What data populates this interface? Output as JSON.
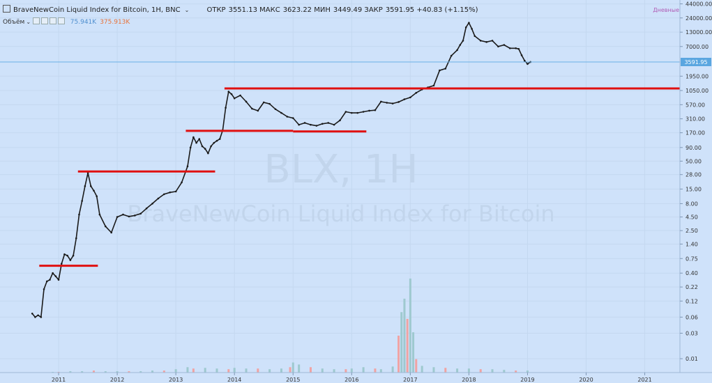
{
  "header": {
    "title": "BraveNewCoin Liquid Index for Bitcoin, 1H, BNC",
    "dropdown": "⌄",
    "open_label": "ОТКР",
    "open": "3551.13",
    "high_label": "МАКС",
    "high": "3623.22",
    "low_label": "МИН",
    "low": "3449.49",
    "close_label": "ЗАКР",
    "close": "3591.95",
    "change": "+40.83 (+1.15%)"
  },
  "volume": {
    "label": "Объём",
    "value1": "75.941K",
    "value2": "375.913K"
  },
  "interval_label": "Дневные",
  "watermark": {
    "line1": "BLX, 1H",
    "line2": "BraveNewCoin Liquid Index for Bitcoin"
  },
  "colors": {
    "background": "#cfe2fa",
    "candle": "#1a1a1a",
    "level_line": "#e01010",
    "volume_up": "#9ec9cf",
    "volume_down": "#f0a3a3",
    "price_line": "#6ab0e6",
    "price_badge": "#5aa6e0"
  },
  "chart_data": {
    "type": "line",
    "y_scale": "log",
    "xlim": [
      2010.0,
      2021.6
    ],
    "ylim": [
      0.0055,
      52000
    ],
    "x_ticks": [
      "2011",
      "2012",
      "2013",
      "2014",
      "2015",
      "2016",
      "2017",
      "2018",
      "2019",
      "2020",
      "2021"
    ],
    "y_ticks": [
      "44000.00",
      "24000.00",
      "13000.00",
      "7000.00",
      "3591.95",
      "1950.00",
      "1050.00",
      "570.00",
      "310.00",
      "170.00",
      "90.00",
      "50.00",
      "28.00",
      "15.00",
      "8.00",
      "4.50",
      "2.50",
      "1.40",
      "0.75",
      "0.40",
      "0.22",
      "0.12",
      "0.06",
      "0.03",
      "0.01"
    ],
    "last_price": 3591.95,
    "series": [
      {
        "x": [
          2010.55,
          2010.6,
          2010.65,
          2010.7,
          2010.75,
          2010.8,
          2010.85,
          2010.9,
          2010.95,
          2011.0,
          2011.05,
          2011.1,
          2011.15,
          2011.2,
          2011.25,
          2011.3,
          2011.35,
          2011.4,
          2011.45,
          2011.5,
          2011.55,
          2011.6,
          2011.65,
          2011.7,
          2011.8,
          2011.9,
          2012.0,
          2012.1,
          2012.2,
          2012.3,
          2012.4,
          2012.5,
          2012.6,
          2012.7,
          2012.8,
          2012.9,
          2013.0,
          2013.1,
          2013.2,
          2013.25,
          2013.3,
          2013.35,
          2013.4,
          2013.45,
          2013.5,
          2013.55,
          2013.6,
          2013.65,
          2013.7,
          2013.75,
          2013.8,
          2013.85,
          2013.9,
          2013.95,
          2014.0,
          2014.1,
          2014.2,
          2014.3,
          2014.4,
          2014.5,
          2014.6,
          2014.7,
          2014.8,
          2014.9,
          2015.0,
          2015.1,
          2015.2,
          2015.3,
          2015.4,
          2015.5,
          2015.6,
          2015.7,
          2015.8,
          2015.9,
          2016.0,
          2016.1,
          2016.2,
          2016.3,
          2016.4,
          2016.5,
          2016.6,
          2016.7,
          2016.8,
          2016.9,
          2017.0,
          2017.1,
          2017.2,
          2017.3,
          2017.4,
          2017.5,
          2017.6,
          2017.7,
          2017.8,
          2017.85,
          2017.9,
          2017.95,
          2018.0,
          2018.05,
          2018.1,
          2018.2,
          2018.3,
          2018.4,
          2018.5,
          2018.6,
          2018.7,
          2018.8,
          2018.85,
          2018.9,
          2018.95,
          2019.0,
          2019.05
        ],
        "y": [
          0.07,
          0.06,
          0.065,
          0.06,
          0.2,
          0.28,
          0.3,
          0.4,
          0.35,
          0.3,
          0.6,
          0.9,
          0.85,
          0.7,
          0.85,
          1.8,
          5.0,
          9.0,
          17.0,
          30.0,
          17.0,
          14.0,
          11.0,
          5.0,
          3.0,
          2.3,
          4.5,
          5.0,
          4.6,
          4.8,
          5.2,
          6.5,
          8.0,
          10.0,
          12.0,
          13.0,
          13.5,
          20.0,
          40.0,
          90.0,
          140.0,
          110.0,
          130.0,
          95.0,
          85.0,
          70.0,
          95.0,
          110.0,
          120.0,
          130.0,
          190.0,
          500.0,
          1000.0,
          900.0,
          750.0,
          850.0,
          650.0,
          480.0,
          440.0,
          630.0,
          590.0,
          470.0,
          400.0,
          340.0,
          320.0,
          240.0,
          260.0,
          240.0,
          230.0,
          250.0,
          260.0,
          240.0,
          290.0,
          420.0,
          400.0,
          400.0,
          420.0,
          440.0,
          450.0,
          650.0,
          620.0,
          600.0,
          640.0,
          720.0,
          780.0,
          950.0,
          1100.0,
          1200.0,
          1300.0,
          2500.0,
          2700.0,
          4700.0,
          6000.0,
          7500.0,
          9000.0,
          16000.0,
          19500.0,
          15000.0,
          11000.0,
          9000.0,
          8500.0,
          9000.0,
          7000.0,
          7500.0,
          6500.0,
          6500.0,
          6300.0,
          4800.0,
          3800.0,
          3300.0,
          3600.0
        ]
      }
    ],
    "level_lines": [
      {
        "x": [
          2010.67,
          2011.67
        ],
        "y": 0.55
      },
      {
        "x": [
          2011.33,
          2013.67
        ],
        "y": 32.0
      },
      {
        "x": [
          2013.17,
          2015.0
        ],
        "y": 185.0
      },
      {
        "x": [
          2015.0,
          2016.25
        ],
        "y": 180.0
      },
      {
        "x": [
          2013.83,
          2021.6
        ],
        "y": 1150.0
      }
    ],
    "volume_series": {
      "x": [
        2010.9,
        2011.0,
        2011.2,
        2011.4,
        2011.6,
        2011.8,
        2012.0,
        2012.2,
        2012.4,
        2012.6,
        2012.8,
        2013.0,
        2013.2,
        2013.3,
        2013.5,
        2013.7,
        2013.9,
        2014.0,
        2014.2,
        2014.4,
        2014.6,
        2014.8,
        2014.95,
        2015.0,
        2015.1,
        2015.3,
        2015.5,
        2015.7,
        2015.9,
        2016.0,
        2016.2,
        2016.4,
        2016.5,
        2016.7,
        2016.8,
        2016.85,
        2016.9,
        2016.95,
        2017.0,
        2017.05,
        2017.1,
        2017.2,
        2017.4,
        2017.6,
        2017.8,
        2018.0,
        2018.2,
        2018.4,
        2018.6,
        2018.8,
        2019.0
      ],
      "values": [
        1,
        1,
        2,
        2,
        3,
        2,
        2,
        2,
        2,
        3,
        3,
        5,
        8,
        6,
        7,
        6,
        5,
        7,
        6,
        6,
        5,
        6,
        8,
        15,
        12,
        8,
        6,
        5,
        5,
        6,
        8,
        6,
        5,
        9,
        55,
        90,
        110,
        80,
        140,
        60,
        20,
        10,
        8,
        7,
        6,
        6,
        5,
        5,
        4,
        3,
        3
      ]
    }
  }
}
